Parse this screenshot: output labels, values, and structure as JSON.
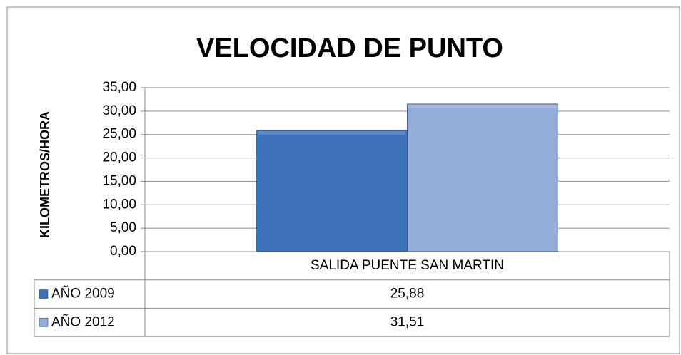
{
  "chart_data": {
    "type": "bar",
    "title": "VELOCIDAD DE PUNTO",
    "y_label": "KILOMETROS/HORA",
    "categories": [
      "SALIDA PUENTE SAN MARTIN"
    ],
    "series": [
      {
        "name": "AÑO 2009",
        "color": "#3c70bb",
        "values": [
          25.88
        ],
        "value_labels": [
          "25,88"
        ]
      },
      {
        "name": "AÑO 2012",
        "color": "#94acd9",
        "values": [
          31.51
        ],
        "value_labels": [
          "31,51"
        ]
      }
    ],
    "ylim": [
      0,
      35
    ],
    "yticks": [
      {
        "value": 0,
        "label": "0,00"
      },
      {
        "value": 5,
        "label": "5,00"
      },
      {
        "value": 10,
        "label": "10,00"
      },
      {
        "value": 15,
        "label": "15,00"
      },
      {
        "value": 20,
        "label": "20,00"
      },
      {
        "value": 25,
        "label": "25,00"
      },
      {
        "value": 30,
        "label": "30,00"
      },
      {
        "value": 35,
        "label": "35,00"
      }
    ],
    "grid": true,
    "data_table": true
  }
}
